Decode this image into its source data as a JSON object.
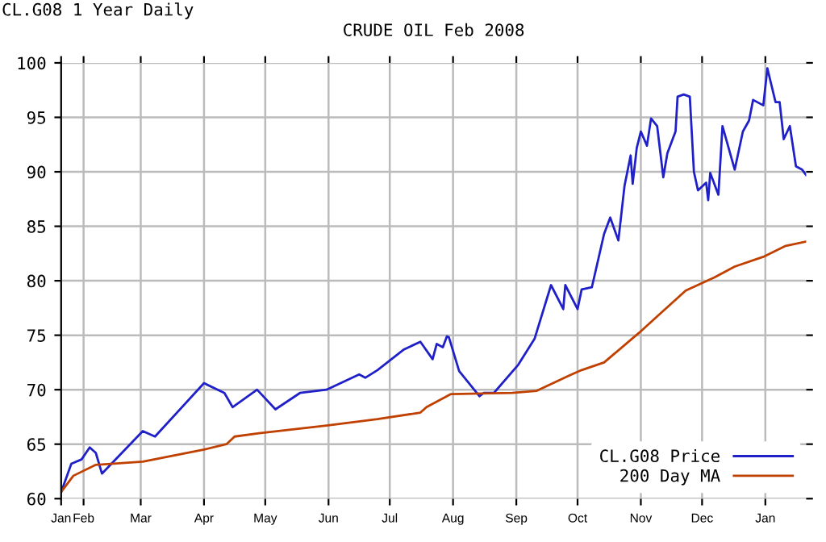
{
  "chart_data": {
    "type": "line",
    "title": "CRUDE OIL Feb 2008",
    "annotations": [
      "CL.G08 1 Year Daily"
    ],
    "xlim": [
      "2007-01-21",
      "2008-01-21"
    ],
    "xticks": [
      {
        "value": "2007-01-21",
        "label": "Jan"
      },
      {
        "value": "2007-02-01",
        "label": "Feb"
      },
      {
        "value": "2007-03-01",
        "label": "Mar"
      },
      {
        "value": "2007-04-01",
        "label": "Apr"
      },
      {
        "value": "2007-05-01",
        "label": "May"
      },
      {
        "value": "2007-06-01",
        "label": "Jun"
      },
      {
        "value": "2007-07-01",
        "label": "Jul"
      },
      {
        "value": "2007-08-01",
        "label": "Aug"
      },
      {
        "value": "2007-09-01",
        "label": "Sep"
      },
      {
        "value": "2007-10-01",
        "label": "Oct"
      },
      {
        "value": "2007-11-01",
        "label": "Nov"
      },
      {
        "value": "2007-12-01",
        "label": "Dec"
      },
      {
        "value": "2008-01-01",
        "label": "Jan"
      }
    ],
    "ylim": [
      60,
      100
    ],
    "yticks": [
      60,
      65,
      70,
      75,
      80,
      85,
      90,
      95,
      100
    ],
    "grid": true,
    "legend": "bottom right",
    "line_style": "solid",
    "marker": "none",
    "series": [
      {
        "name": "CL.G08 Price",
        "color": "#2020c8",
        "x": [
          "2007-01-21",
          "2007-01-26",
          "2007-01-31",
          "2007-02-04",
          "2007-02-07",
          "2007-02-10",
          "2007-03-02",
          "2007-03-08",
          "2007-04-01",
          "2007-04-11",
          "2007-04-15",
          "2007-04-27",
          "2007-05-06",
          "2007-05-18",
          "2007-05-31",
          "2007-06-16",
          "2007-06-19",
          "2007-06-25",
          "2007-07-08",
          "2007-07-16",
          "2007-07-22",
          "2007-07-24",
          "2007-07-27",
          "2007-07-29",
          "2007-07-30",
          "2007-08-04",
          "2007-08-14",
          "2007-08-16",
          "2007-08-21",
          "2007-09-02",
          "2007-09-10",
          "2007-09-18",
          "2007-09-24",
          "2007-09-25",
          "2007-10-01",
          "2007-10-03",
          "2007-10-08",
          "2007-10-14",
          "2007-10-17",
          "2007-10-21",
          "2007-10-24",
          "2007-10-27",
          "2007-10-28",
          "2007-10-30",
          "2007-11-01",
          "2007-11-04",
          "2007-11-06",
          "2007-11-09",
          "2007-11-12",
          "2007-11-14",
          "2007-11-18",
          "2007-11-19",
          "2007-11-22",
          "2007-11-25",
          "2007-11-27",
          "2007-11-29",
          "2007-12-03",
          "2007-12-04",
          "2007-12-05",
          "2007-12-09",
          "2007-12-11",
          "2007-12-17",
          "2007-12-21",
          "2007-12-24",
          "2007-12-26",
          "2007-12-31",
          "2008-01-02",
          "2008-01-06",
          "2008-01-08",
          "2008-01-10",
          "2008-01-13",
          "2008-01-16",
          "2008-01-19",
          "2008-01-21"
        ],
        "values": [
          60.6,
          63.2,
          63.6,
          64.7,
          64.2,
          62.3,
          66.2,
          65.7,
          70.6,
          69.7,
          68.4,
          70.0,
          68.2,
          69.7,
          70.0,
          71.4,
          71.1,
          71.8,
          73.7,
          74.4,
          72.8,
          74.2,
          73.9,
          74.9,
          74.8,
          71.7,
          69.4,
          69.7,
          69.7,
          72.3,
          74.7,
          79.6,
          77.4,
          79.6,
          77.4,
          79.2,
          79.4,
          84.3,
          85.8,
          83.7,
          88.7,
          91.5,
          88.9,
          92.2,
          93.7,
          92.4,
          94.9,
          94.2,
          89.5,
          91.7,
          93.7,
          96.9,
          97.1,
          96.9,
          90.0,
          88.3,
          89.0,
          87.4,
          89.9,
          87.9,
          94.2,
          90.2,
          93.7,
          94.7,
          96.6,
          96.1,
          99.5,
          96.4,
          96.4,
          93.0,
          94.2,
          90.5,
          90.2,
          89.7
        ]
      },
      {
        "name": "200 Day MA",
        "color": "#c04000",
        "x": [
          "2007-01-21",
          "2007-01-27",
          "2007-02-07",
          "2007-03-02",
          "2007-04-01",
          "2007-04-12",
          "2007-04-16",
          "2007-04-28",
          "2007-05-31",
          "2007-06-25",
          "2007-07-16",
          "2007-07-19",
          "2007-07-31",
          "2007-08-30",
          "2007-09-11",
          "2007-09-27",
          "2007-10-03",
          "2007-10-14",
          "2007-10-19",
          "2007-10-31",
          "2007-11-10",
          "2007-11-23",
          "2007-12-07",
          "2007-12-17",
          "2007-12-31",
          "2008-01-11",
          "2008-01-21"
        ],
        "values": [
          60.6,
          62.1,
          63.1,
          63.4,
          64.5,
          65.0,
          65.7,
          66.0,
          66.7,
          67.3,
          67.9,
          68.4,
          69.6,
          69.7,
          69.9,
          71.3,
          71.8,
          72.5,
          73.3,
          75.2,
          76.9,
          79.1,
          80.3,
          81.3,
          82.2,
          83.2,
          83.6
        ]
      }
    ]
  }
}
